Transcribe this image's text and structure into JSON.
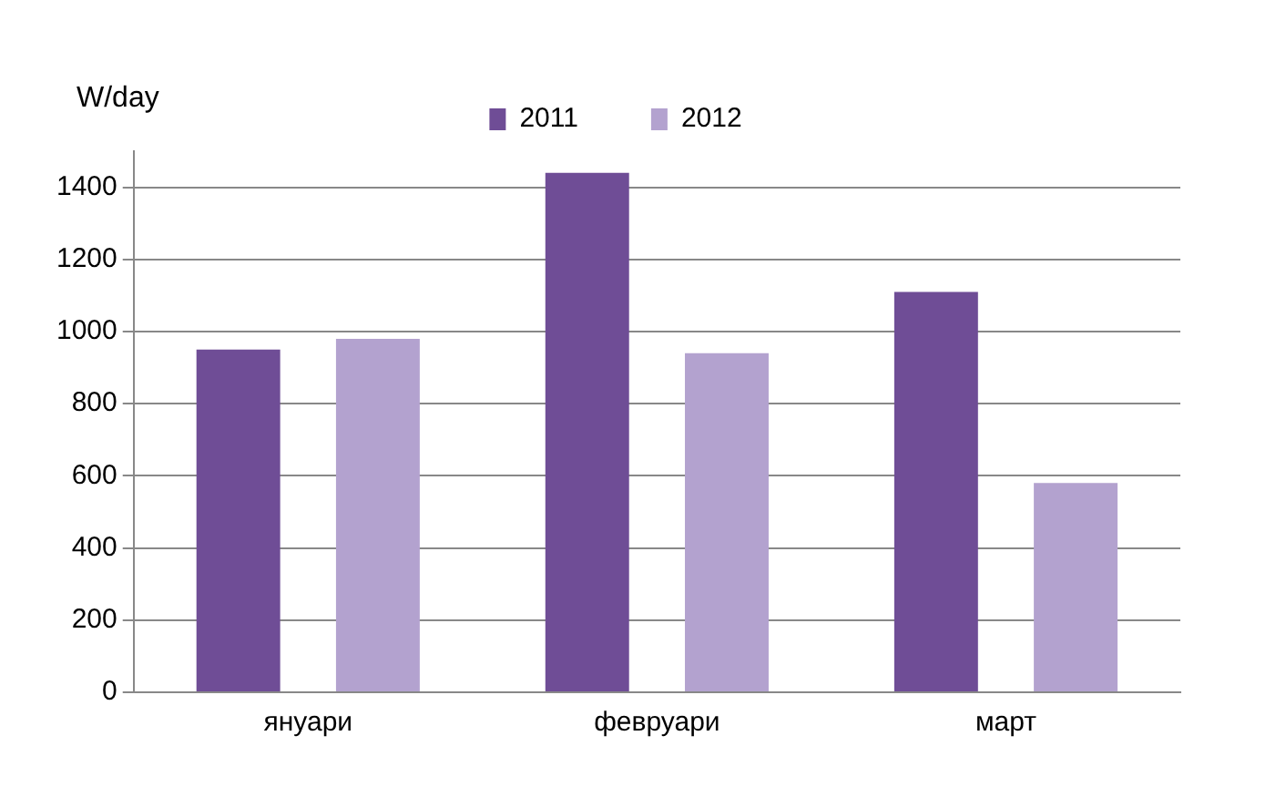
{
  "chart_data": {
    "type": "bar",
    "ylabel": "W/day",
    "categories": [
      "януари",
      "февруари",
      "март"
    ],
    "series": [
      {
        "name": "2011",
        "color": "#6f4d96",
        "values": [
          950,
          1440,
          1110
        ]
      },
      {
        "name": "2012",
        "color": "#b3a2cf",
        "values": [
          980,
          940,
          580
        ]
      }
    ],
    "ylim": [
      0,
      1500
    ],
    "yticks": [
      0,
      200,
      400,
      600,
      800,
      1000,
      1200,
      1400
    ],
    "grid": "y",
    "legend": "top"
  }
}
